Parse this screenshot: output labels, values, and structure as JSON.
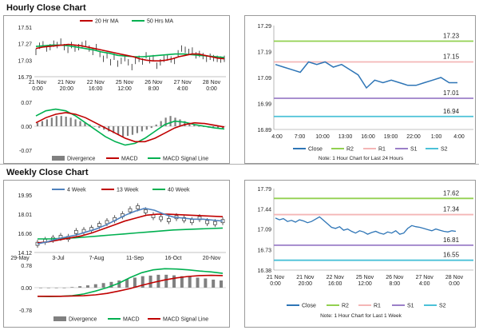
{
  "sections": {
    "hourly_title": "Hourly Close Chart",
    "weekly_title": "Weekly Close Chart"
  },
  "colors": {
    "close": "#2e75b6",
    "ma20": "#c00000",
    "ma50": "#00b050",
    "r2": "#92d050",
    "r1": "#f4b6b6",
    "s1": "#9b7fc8",
    "s2": "#4bc1d8",
    "div": "#808080",
    "macd": "#00b050",
    "signal": "#c00000",
    "ma4": "#4f81bd",
    "ma13": "#c00000",
    "ma40": "#00b050"
  },
  "chart_data": [
    {
      "id": "hourly_price",
      "type": "line",
      "legend": [
        "20 Hr MA",
        "50 Hrs MA"
      ],
      "yticks": [
        "17.51",
        "17.27",
        "17.03",
        "16.79"
      ],
      "ylim": [
        16.79,
        17.51
      ],
      "xticks": [
        [
          "21 Nov",
          "0:00"
        ],
        [
          "21 Nov",
          "20:00"
        ],
        [
          "22 Nov",
          "16:00"
        ],
        [
          "25 Nov",
          "12:00"
        ],
        [
          "26 Nov",
          "8:00"
        ],
        [
          "27 Nov",
          "4:00"
        ],
        [
          "28 Nov",
          "0:00"
        ]
      ],
      "close": [
        17.15,
        17.24,
        17.26,
        17.2,
        17.22,
        17.27,
        17.25,
        17.3,
        17.22,
        17.18,
        17.25,
        17.2,
        17.22,
        17.25,
        17.27,
        17.2,
        17.15,
        17.22,
        17.12,
        17.05,
        17.1,
        17.0,
        17.08,
        16.98,
        17.02,
        17.06,
        17.0,
        16.93,
        17.02,
        17.05,
        17.01,
        17.1,
        17.03,
        17.06,
        16.95,
        17.0,
        17.05,
        17.07,
        17.04,
        17.02,
        17.13,
        17.2,
        17.18,
        17.15,
        17.17,
        17.1,
        17.12,
        17.09,
        17.05,
        17.08,
        17.06,
        17.05,
        17.04,
        17.05
      ],
      "ma20": [
        17.2,
        17.22,
        17.23,
        17.24,
        17.25,
        17.26,
        17.25,
        17.24,
        17.22,
        17.2,
        17.18,
        17.16,
        17.14,
        17.12,
        17.1,
        17.08,
        17.05,
        17.03,
        17.02,
        17.02,
        17.03,
        17.05,
        17.08,
        17.1,
        17.12,
        17.12,
        17.1,
        17.08,
        17.06,
        17.05
      ],
      "ma50": [
        17.23,
        17.24,
        17.25,
        17.25,
        17.24,
        17.22,
        17.2,
        17.18,
        17.15,
        17.13,
        17.1,
        17.09,
        17.08,
        17.08,
        17.09,
        17.1,
        17.11,
        17.12,
        17.12,
        17.11,
        17.1,
        17.09,
        17.08,
        17.07
      ]
    },
    {
      "id": "hourly_macd",
      "type": "bar+line",
      "legend": [
        "Divergence",
        "MACD",
        "MACD Signal Line"
      ],
      "yticks": [
        "0.07",
        "0.00",
        "-0.07"
      ],
      "ylim": [
        -0.07,
        0.07
      ],
      "divergence": [
        0.01,
        0.015,
        0.02,
        0.025,
        0.03,
        0.03,
        0.028,
        0.025,
        0.02,
        0.015,
        0.01,
        0.005,
        0.0,
        -0.005,
        -0.01,
        -0.015,
        -0.02,
        -0.025,
        -0.03,
        -0.028,
        -0.025,
        -0.02,
        -0.015,
        -0.01,
        -0.005,
        0.005,
        0.015,
        0.025,
        0.03,
        0.025,
        0.02,
        0.015,
        0.01,
        0.005,
        0.0,
        -0.002,
        -0.004,
        -0.005,
        -0.006,
        -0.006
      ],
      "macd": [
        0.03,
        0.045,
        0.05,
        0.045,
        0.03,
        0.01,
        -0.01,
        -0.03,
        -0.045,
        -0.055,
        -0.05,
        -0.035,
        -0.015,
        0.005,
        0.015,
        0.012,
        0.005,
        0.0,
        -0.005,
        -0.008
      ],
      "signal": [
        0.01,
        0.025,
        0.035,
        0.04,
        0.035,
        0.025,
        0.01,
        -0.005,
        -0.02,
        -0.035,
        -0.045,
        -0.045,
        -0.035,
        -0.02,
        -0.005,
        0.005,
        0.01,
        0.008,
        0.003,
        -0.002
      ]
    },
    {
      "id": "hourly_close",
      "type": "line",
      "yticks": [
        "17.29",
        "17.19",
        "17.09",
        "16.99",
        "16.89"
      ],
      "ylim": [
        16.89,
        17.29
      ],
      "xticks": [
        "4:00",
        "7:00",
        "10:00",
        "13:00",
        "16:00",
        "19:00",
        "22:00",
        "1:00",
        "4:00"
      ],
      "levels": [
        {
          "name": "R2",
          "value": 17.23,
          "label": "17.23"
        },
        {
          "name": "R1",
          "value": 17.15,
          "label": "17.15"
        },
        {
          "name": "S1",
          "value": 17.01,
          "label": "17.01"
        },
        {
          "name": "S2",
          "value": 16.94,
          "label": "16.94"
        }
      ],
      "close": [
        17.14,
        17.13,
        17.12,
        17.11,
        17.15,
        17.14,
        17.15,
        17.13,
        17.14,
        17.12,
        17.1,
        17.05,
        17.08,
        17.07,
        17.08,
        17.07,
        17.06,
        17.06,
        17.07,
        17.08,
        17.09,
        17.07,
        17.07
      ],
      "legend": [
        "Close",
        "R2",
        "R1",
        "S1",
        "S2"
      ],
      "note": "Note: 1 Hour Chart for Last 24 Hours"
    },
    {
      "id": "weekly_price",
      "type": "line+candlestick",
      "legend": [
        "4 Week",
        "13 Week",
        "40 Week"
      ],
      "yticks": [
        "19.95",
        "18.01",
        "16.06",
        "14.12"
      ],
      "ylim": [
        14.12,
        19.95
      ],
      "xticks": [
        "29-May",
        "3-Jul",
        "7-Aug",
        "11-Sep",
        "16-Oct",
        "20-Nov"
      ],
      "candles": [
        15.0,
        15.3,
        15.5,
        15.7,
        15.6,
        16.2,
        16.3,
        16.5,
        16.9,
        17.2,
        17.5,
        17.9,
        18.4,
        18.7,
        18.3,
        17.8,
        17.6,
        17.4,
        17.7,
        17.5,
        17.3,
        17.6,
        17.2,
        17.1,
        17.3
      ],
      "ma4": [
        15.0,
        15.2,
        15.5,
        15.7,
        15.9,
        16.2,
        16.5,
        16.9,
        17.4,
        17.9,
        18.3,
        18.6,
        18.4,
        18.0,
        17.7,
        17.6,
        17.5,
        17.5,
        17.4,
        17.3
      ],
      "ma13": [
        15.1,
        15.2,
        15.4,
        15.6,
        15.8,
        16.1,
        16.5,
        16.9,
        17.3,
        17.6,
        17.9,
        18.0,
        18.0,
        17.95,
        17.9,
        17.85,
        17.8,
        17.75
      ],
      "ma40": [
        15.5,
        15.5,
        15.55,
        15.6,
        15.7,
        15.8,
        15.9,
        16.0,
        16.1,
        16.2,
        16.3,
        16.4,
        16.45,
        16.5,
        16.55,
        16.6
      ]
    },
    {
      "id": "weekly_macd",
      "type": "bar+line",
      "legend": [
        "Divergence",
        "MACD",
        "MACD Signal Line"
      ],
      "yticks": [
        "0.78",
        "0.00",
        "-0.78"
      ],
      "ylim": [
        -0.78,
        0.78
      ],
      "divergence": [
        0.0,
        0.0,
        0.0,
        0.0,
        0.02,
        0.05,
        0.08,
        0.12,
        0.16,
        0.2,
        0.25,
        0.3,
        0.35,
        0.4,
        0.42,
        0.45,
        0.45,
        0.43,
        0.4,
        0.38,
        0.35,
        0.32,
        0.28,
        0.25
      ],
      "macd": [
        -0.3,
        -0.31,
        -0.3,
        -0.28,
        -0.22,
        -0.12,
        0.0,
        0.15,
        0.35,
        0.52,
        0.62,
        0.66,
        0.65,
        0.62,
        0.58,
        0.55,
        0.5
      ],
      "signal": [
        -0.3,
        -0.3,
        -0.3,
        -0.29,
        -0.28,
        -0.25,
        -0.2,
        -0.12,
        -0.03,
        0.08,
        0.18,
        0.27,
        0.34,
        0.39,
        0.42,
        0.43,
        0.42
      ]
    },
    {
      "id": "weekly_close",
      "type": "line",
      "yticks": [
        "17.79",
        "17.44",
        "17.09",
        "16.73",
        "16.38"
      ],
      "ylim": [
        16.38,
        17.79
      ],
      "xticks": [
        [
          "21 Nov",
          "0:00"
        ],
        [
          "21 Nov",
          "20:00"
        ],
        [
          "22 Nov",
          "16:00"
        ],
        [
          "25 Nov",
          "12:00"
        ],
        [
          "26 Nov",
          "8:00"
        ],
        [
          "27 Nov",
          "4:00"
        ],
        [
          "28 Nov",
          "0:00"
        ]
      ],
      "levels": [
        {
          "name": "R2",
          "value": 17.62,
          "label": "17.62"
        },
        {
          "name": "R1",
          "value": 17.34,
          "label": "17.34"
        },
        {
          "name": "S1",
          "value": 16.81,
          "label": "16.81"
        },
        {
          "name": "S2",
          "value": 16.55,
          "label": "16.55"
        }
      ],
      "close": [
        17.28,
        17.25,
        17.27,
        17.22,
        17.24,
        17.21,
        17.25,
        17.23,
        17.2,
        17.22,
        17.26,
        17.3,
        17.24,
        17.18,
        17.12,
        17.1,
        17.13,
        17.07,
        17.09,
        17.05,
        17.02,
        17.06,
        17.04,
        17.0,
        17.03,
        17.05,
        17.02,
        17.0,
        17.04,
        17.02,
        17.06,
        17.0,
        17.02,
        17.1,
        17.15,
        17.13,
        17.12,
        17.1,
        17.08,
        17.06,
        17.09,
        17.07,
        17.05,
        17.04,
        17.06,
        17.05
      ],
      "legend": [
        "Close",
        "R2",
        "R1",
        "S1",
        "S2"
      ],
      "note": "Note: 1 Hour Chart for Last 1 Week"
    }
  ]
}
